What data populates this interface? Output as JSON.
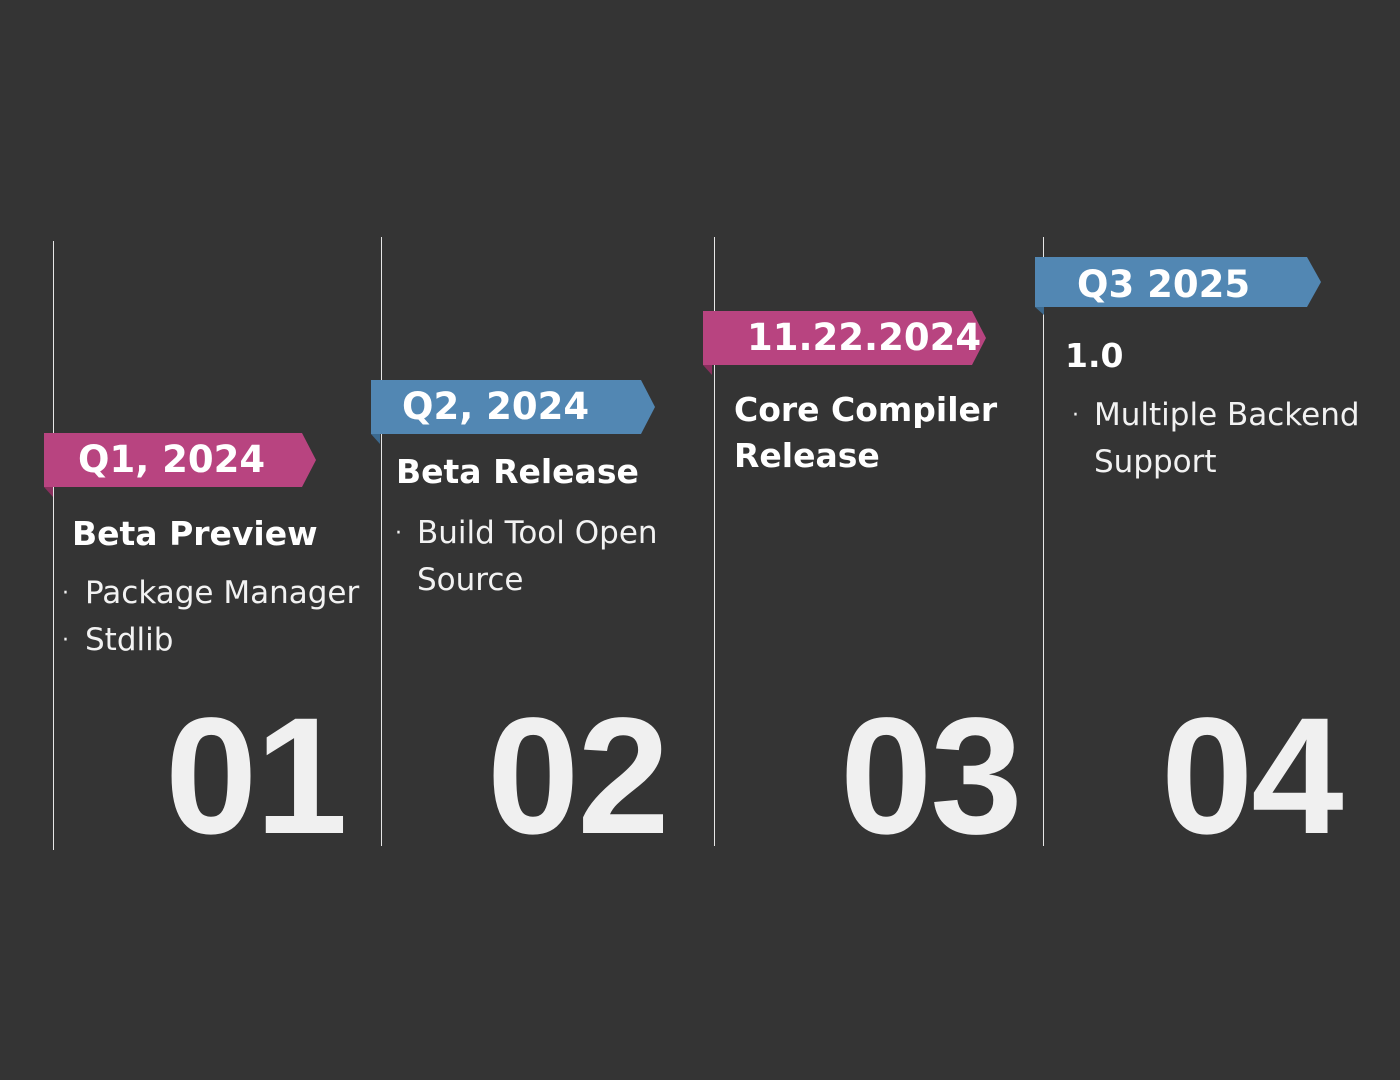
{
  "colors": {
    "background": "#343434",
    "pink": "#b84480",
    "pink_dark": "#8a2f5e",
    "blue": "#5287b3",
    "blue_dark": "#3d6a8f",
    "divider": "#e6e6e6"
  },
  "milestones": [
    {
      "ribbon_label": "Q1, 2024",
      "ribbon_color": "pink",
      "title": "Beta Preview",
      "bullet_marker": "·",
      "bullets": [
        "Package Manager",
        "Stdlib"
      ],
      "number": "01"
    },
    {
      "ribbon_label": "Q2, 2024",
      "ribbon_color": "blue",
      "title": "Beta Release",
      "bullet_marker": "·",
      "bullets": [
        "Build Tool Open",
        "Source"
      ],
      "number": "02"
    },
    {
      "ribbon_label": "11.22.2024",
      "ribbon_color": "pink",
      "title_lines": [
        "Core Compiler",
        "Release"
      ],
      "number": "03"
    },
    {
      "ribbon_label": "Q3 2025",
      "ribbon_color": "blue",
      "title": "1.0",
      "bullet_marker": "·",
      "bullets": [
        "Multiple Backend",
        "Support"
      ],
      "number": "04"
    }
  ]
}
